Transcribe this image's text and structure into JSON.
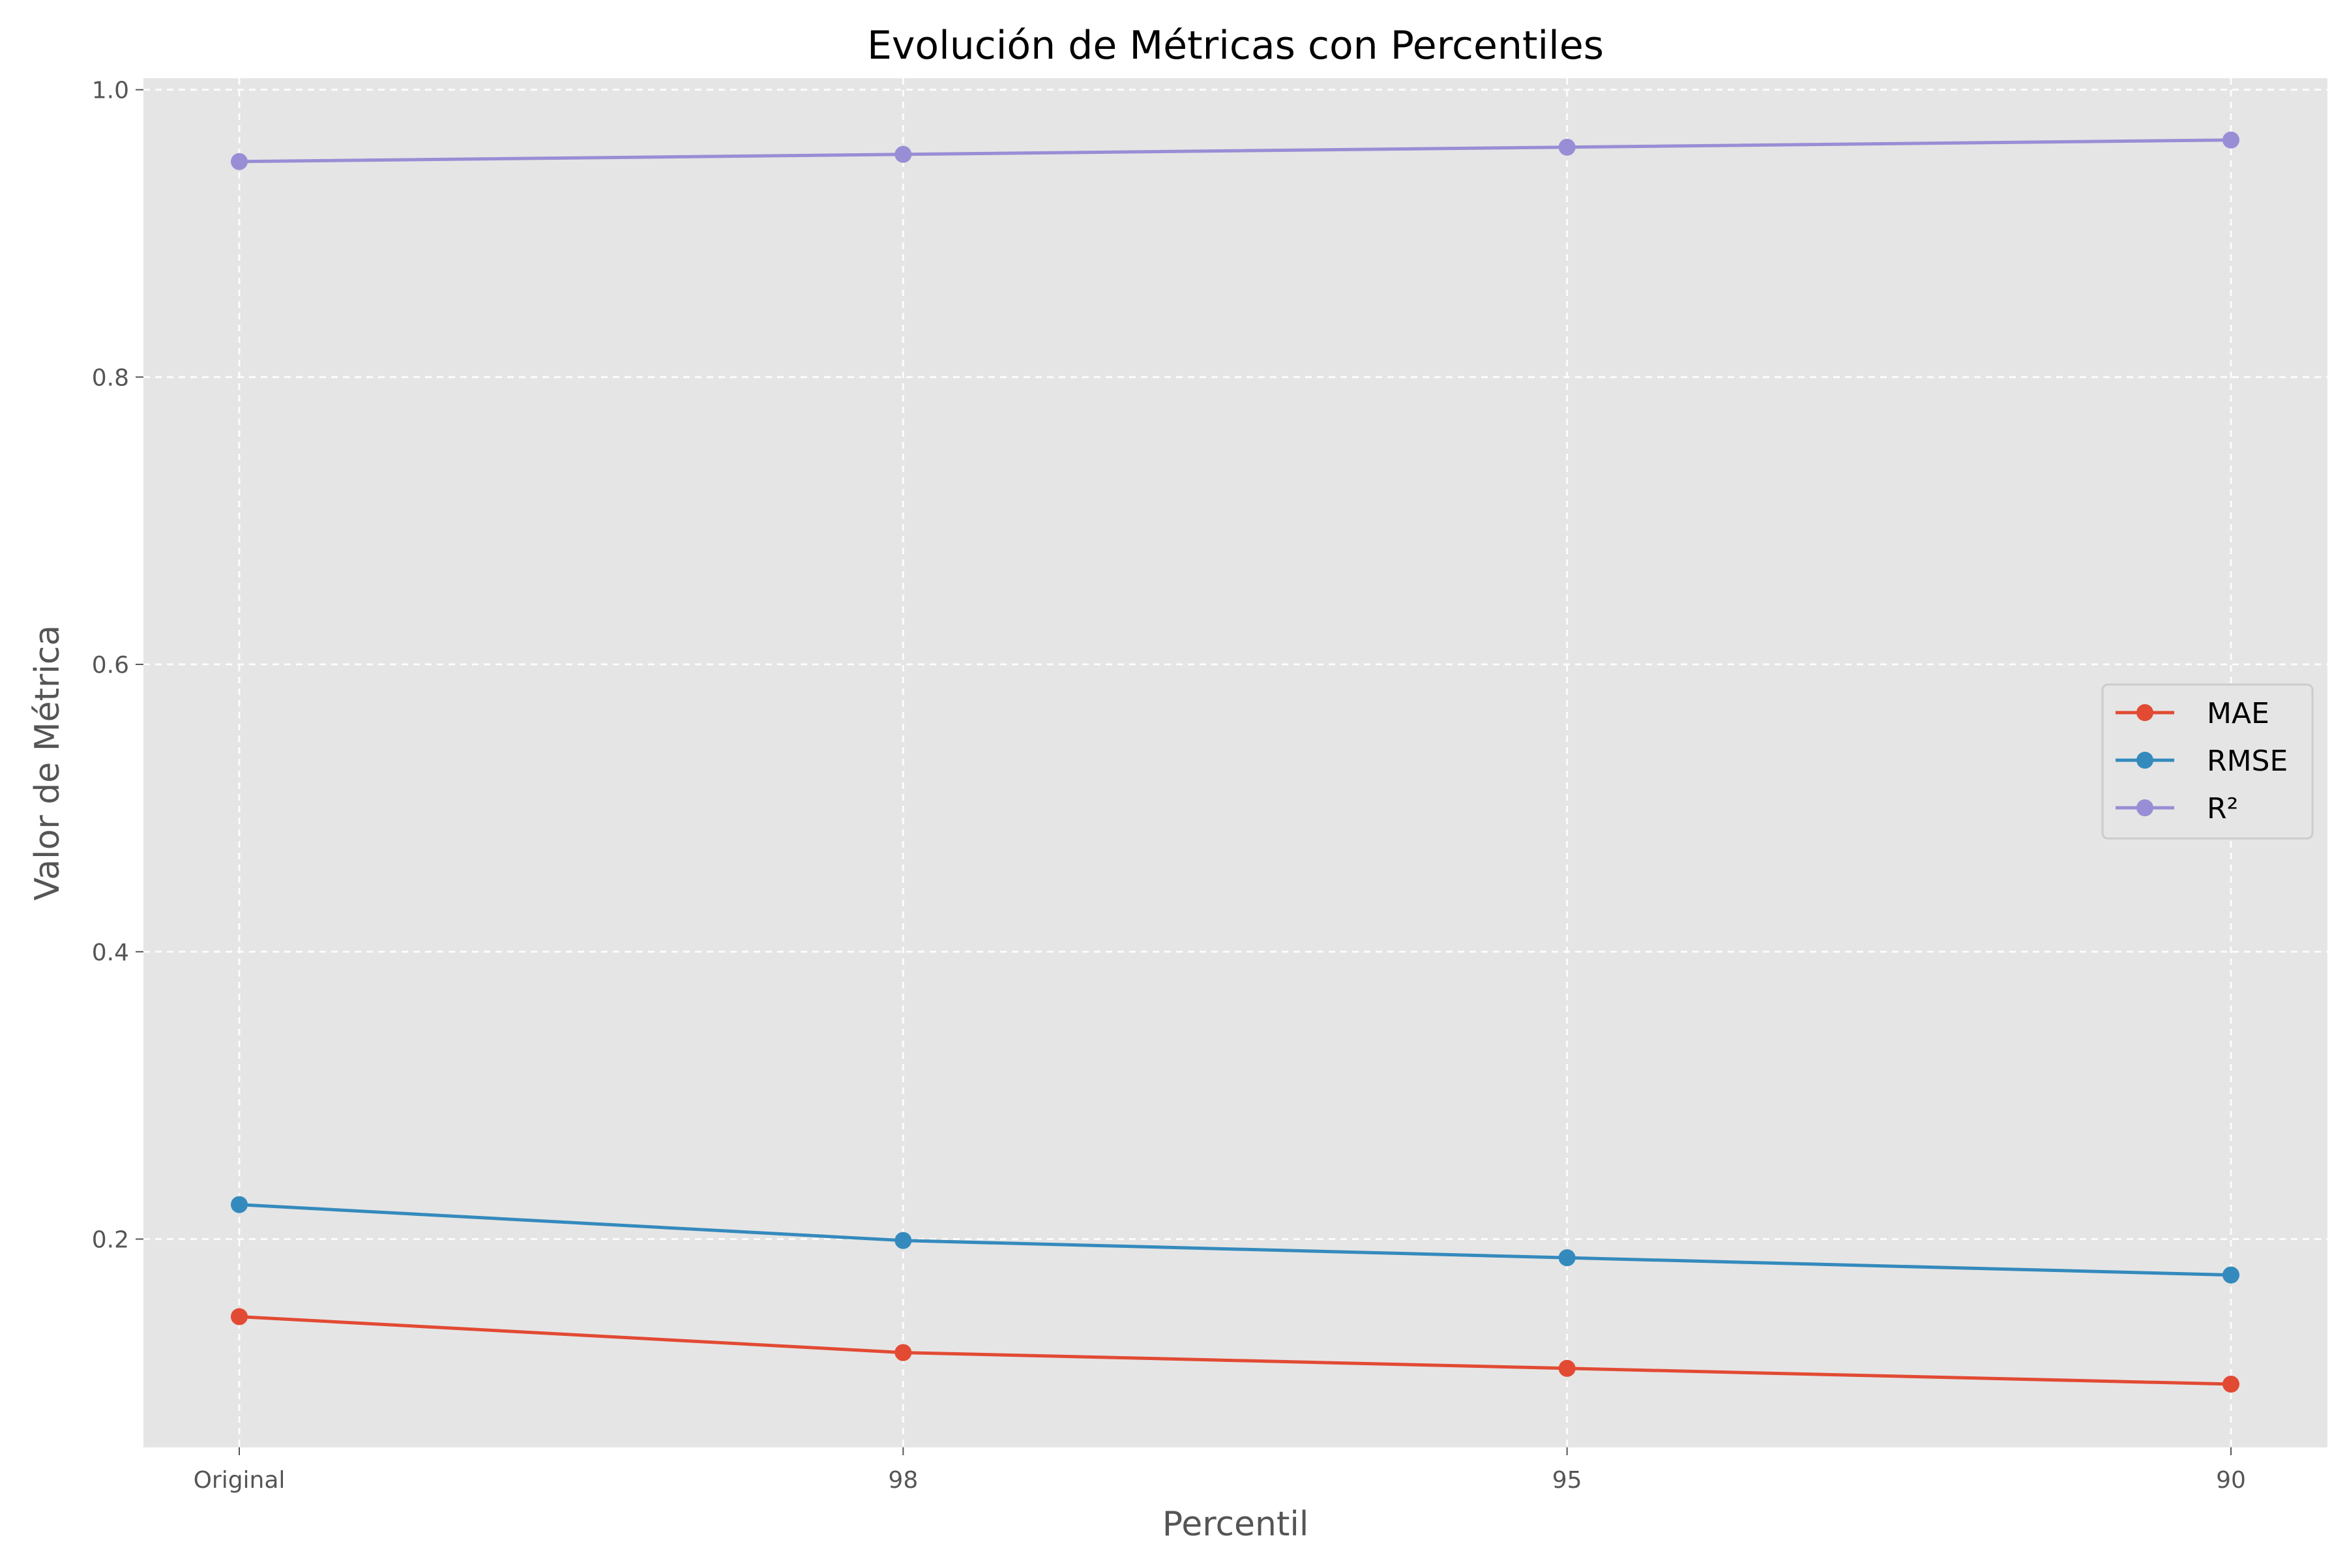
{
  "chart_data": {
    "type": "line",
    "title": "Evolución de Métricas con Percentiles",
    "xlabel": "Percentil",
    "ylabel": "Valor de Métrica",
    "categories": [
      "Original",
      "98",
      "95",
      "90"
    ],
    "yticks": [
      "0.2",
      "0.4",
      "0.6",
      "0.8",
      "1.0"
    ],
    "ylim": [
      0.055,
      1.008
    ],
    "grid": true,
    "legend_position": "center-right",
    "series": [
      {
        "name": "MAE",
        "color": "#E24A33",
        "values": [
          0.146,
          0.121,
          0.11,
          0.099
        ]
      },
      {
        "name": "RMSE",
        "color": "#348ABD",
        "values": [
          0.224,
          0.199,
          0.187,
          0.175
        ]
      },
      {
        "name": "R²",
        "color": "#988ED5",
        "values": [
          0.95,
          0.955,
          0.96,
          0.965
        ]
      }
    ]
  }
}
